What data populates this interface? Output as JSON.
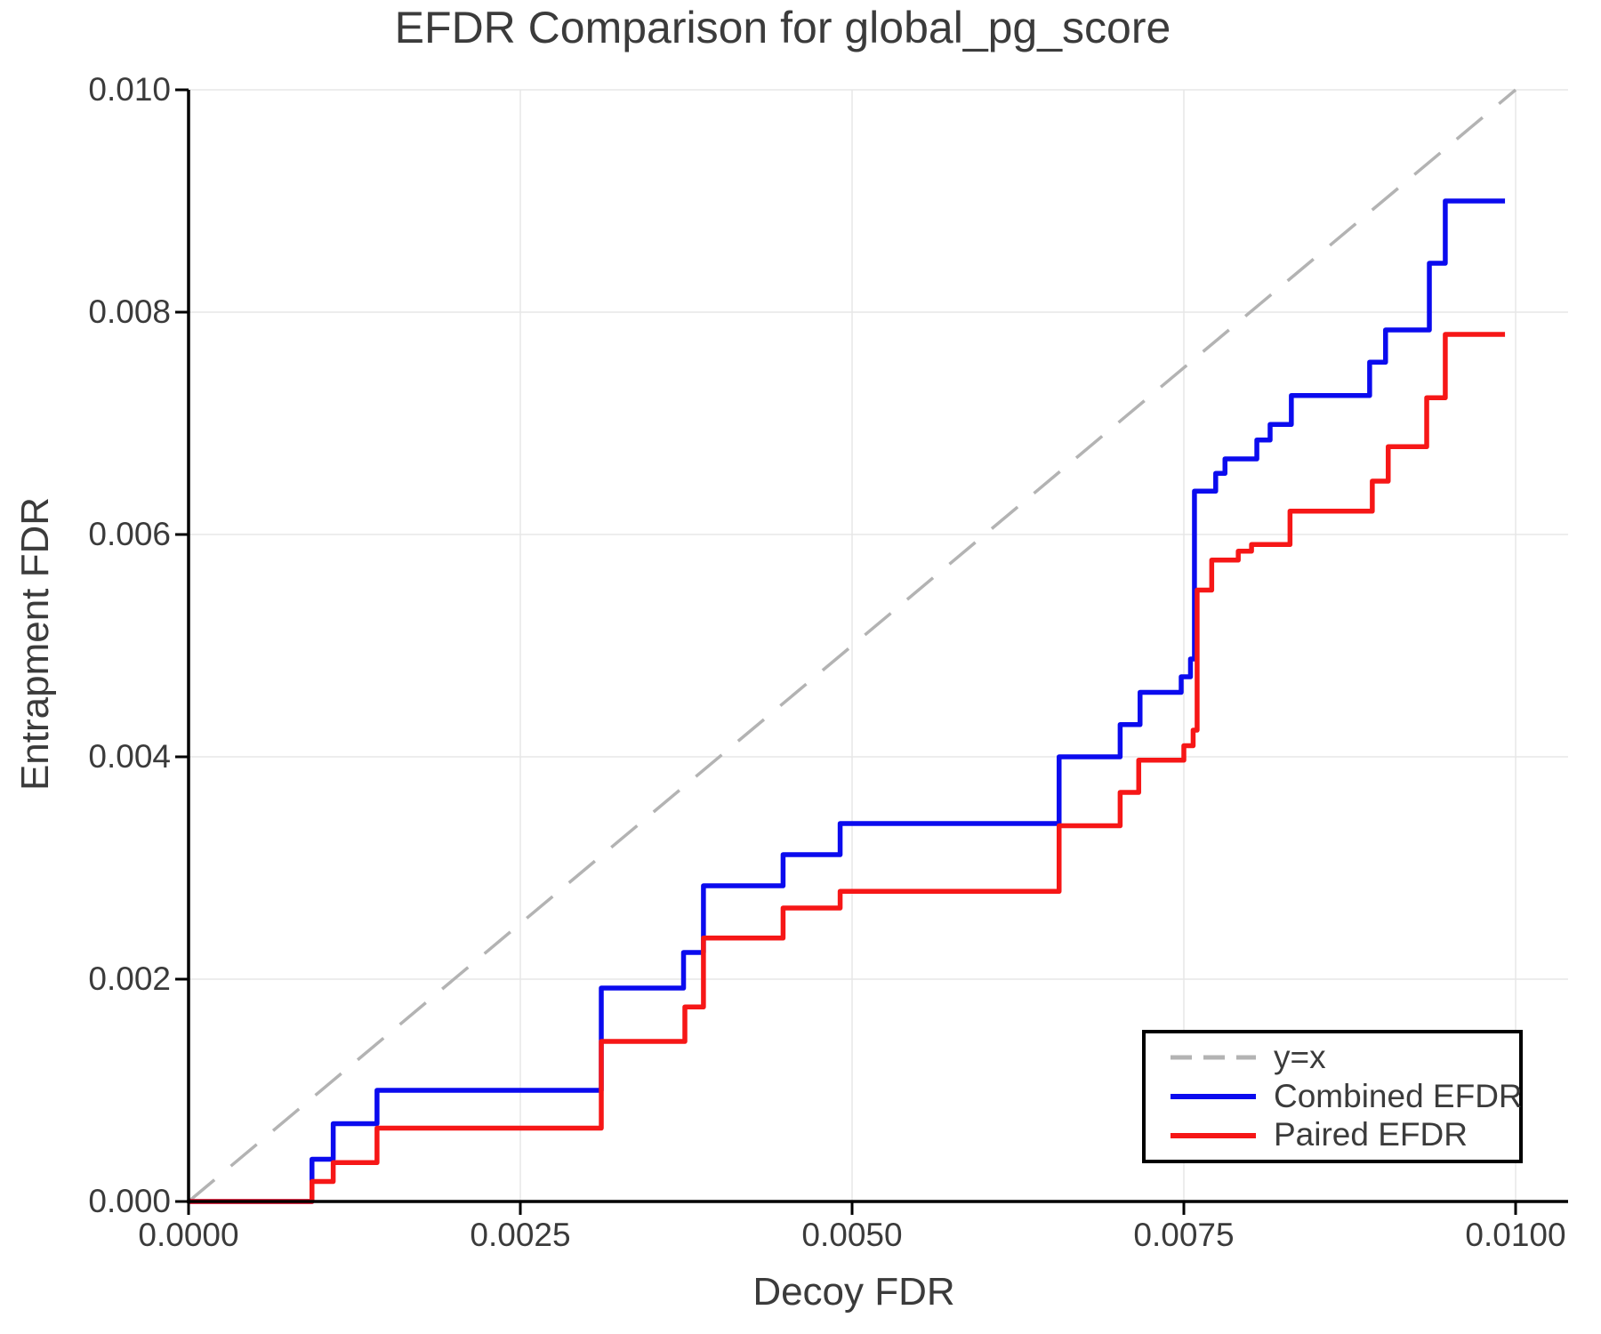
{
  "chart_data": {
    "type": "line",
    "subtype": "step",
    "title": "EFDR Comparison for global_pg_score",
    "xlabel": "Decoy FDR",
    "ylabel": "Entrapment FDR",
    "xlim": [
      0.0,
      0.0104
    ],
    "ylim": [
      0.0,
      0.01
    ],
    "grid": true,
    "grid_color": "#e7e7e7",
    "axis_color": "#000000",
    "text_color": "#3b3b3b",
    "legend_position": "lower right",
    "x_ticks": [
      0.0,
      0.0025,
      0.005,
      0.0075,
      0.01
    ],
    "x_tick_labels": [
      "0.0000",
      "0.0025",
      "0.0050",
      "0.0075",
      "0.0100"
    ],
    "y_ticks": [
      0.0,
      0.002,
      0.004,
      0.006,
      0.008,
      0.01
    ],
    "y_tick_labels": [
      "0.000",
      "0.002",
      "0.004",
      "0.006",
      "0.008",
      "0.010"
    ],
    "reference_line": {
      "label": "y=x",
      "style": "dashed",
      "color": "#b3b3b3",
      "from": [
        0.0,
        0.0
      ],
      "to": [
        0.01,
        0.01
      ]
    },
    "series": [
      {
        "name": "Combined EFDR",
        "color": "#0b0bee",
        "start": [
          0.0,
          0.0
        ],
        "end_x": 0.00992,
        "steps": [
          [
            0.00093,
            0.00038
          ],
          [
            0.00109,
            0.0007
          ],
          [
            0.00142,
            0.001
          ],
          [
            0.00311,
            0.00192
          ],
          [
            0.00373,
            0.00224
          ],
          [
            0.00388,
            0.00284
          ],
          [
            0.00448,
            0.00312
          ],
          [
            0.00491,
            0.0034
          ],
          [
            0.00656,
            0.004
          ],
          [
            0.00702,
            0.00429
          ],
          [
            0.00717,
            0.00458
          ],
          [
            0.00748,
            0.00472
          ],
          [
            0.00755,
            0.00488
          ],
          [
            0.00758,
            0.00639
          ],
          [
            0.00774,
            0.00655
          ],
          [
            0.00781,
            0.00668
          ],
          [
            0.00805,
            0.00685
          ],
          [
            0.00815,
            0.00699
          ],
          [
            0.00831,
            0.00725
          ],
          [
            0.0089,
            0.00755
          ],
          [
            0.00902,
            0.00784
          ],
          [
            0.00935,
            0.00844
          ],
          [
            0.00947,
            0.009
          ]
        ]
      },
      {
        "name": "Paired EFDR",
        "color": "#f61717",
        "start": [
          0.0,
          0.0
        ],
        "end_x": 0.00992,
        "steps": [
          [
            0.00093,
            0.00018
          ],
          [
            0.00109,
            0.00035
          ],
          [
            0.00142,
            0.00066
          ],
          [
            0.00311,
            0.00144
          ],
          [
            0.00374,
            0.00175
          ],
          [
            0.00388,
            0.00237
          ],
          [
            0.00448,
            0.00264
          ],
          [
            0.00491,
            0.00279
          ],
          [
            0.00656,
            0.00338
          ],
          [
            0.00702,
            0.00368
          ],
          [
            0.00716,
            0.00397
          ],
          [
            0.0075,
            0.0041
          ],
          [
            0.00757,
            0.00424
          ],
          [
            0.0076,
            0.0055
          ],
          [
            0.00771,
            0.00577
          ],
          [
            0.00791,
            0.00585
          ],
          [
            0.00801,
            0.00591
          ],
          [
            0.0083,
            0.00621
          ],
          [
            0.00892,
            0.00648
          ],
          [
            0.00904,
            0.00679
          ],
          [
            0.00933,
            0.00723
          ],
          [
            0.00947,
            0.0078
          ]
        ]
      }
    ]
  }
}
